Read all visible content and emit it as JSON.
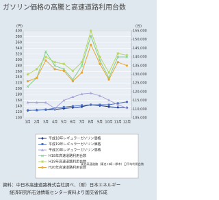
{
  "chart_data": {
    "type": "line",
    "title": "ガソリン価格の高騰と高速道路利用台数",
    "y_label": "(円)",
    "y2_label": "(台)",
    "categories": [
      "1月",
      "2月",
      "3月",
      "4月",
      "5月",
      "6月",
      "7月",
      "8月",
      "9月",
      "10月",
      "11月",
      "12月"
    ],
    "ylim": [
      100,
      400
    ],
    "yticks": [
      100,
      120,
      140,
      160,
      180,
      200,
      220,
      240,
      260,
      280,
      300,
      320,
      340,
      360,
      380,
      400
    ],
    "y2lim": [
      105000,
      155000
    ],
    "y2ticks": [
      {
        "value": 105000,
        "label": "105,000"
      },
      {
        "value": 110000,
        "label": "110,000"
      },
      {
        "value": 115000,
        "label": "115,000"
      },
      {
        "value": 120000,
        "label": "120,000"
      },
      {
        "value": 125000,
        "label": "125,000"
      },
      {
        "value": 130000,
        "label": "130,000"
      },
      {
        "value": 135000,
        "label": "135,000"
      },
      {
        "value": 140000,
        "label": "140,000"
      },
      {
        "value": 145000,
        "label": "145,000"
      },
      {
        "value": 150000,
        "label": "150,000"
      },
      {
        "value": 155000,
        "label": "155,000"
      }
    ],
    "grid": true,
    "series": [
      {
        "name": "平成18年レギュラーガソリン価格",
        "color": "#1f3a8a",
        "marker": "diamond",
        "values": [
          125,
          127,
          128,
          129,
          132,
          135,
          138,
          145,
          142,
          138,
          136,
          135
        ]
      },
      {
        "name": "平成19年レギュラーガソリン価格",
        "color": "#4a6fc4",
        "marker": "square",
        "values": [
          126,
          126,
          128,
          133,
          137,
          140,
          143,
          145,
          145,
          145,
          150,
          155
        ]
      },
      {
        "name": "平成20年レギュラーガソリン価格",
        "color": "#a9a3d6",
        "marker": "triangle",
        "values": [
          153,
          153,
          153,
          132,
          160,
          172,
          182,
          185,
          176,
          161,
          145,
          134
        ]
      },
      {
        "name": "H18年高速道路利用台数",
        "color": "#7fcf8f",
        "marker": "cross",
        "axis": "y2",
        "values": [
          123000,
          128000,
          143000,
          135000,
          133000,
          127000,
          135000,
          152000,
          138000,
          128000,
          140000,
          140000
        ]
      },
      {
        "name": "H19年高速道路利用台数",
        "color": "#b9d65a",
        "marker": "star",
        "axis": "y2",
        "values": [
          130000,
          133000,
          140000,
          137000,
          136000,
          132000,
          137000,
          155000,
          140000,
          131000,
          142000,
          141000
        ]
      },
      {
        "name": "H20年高速道路利用台数",
        "color": "#e8a530",
        "marker": "circle",
        "axis": "y2",
        "values": [
          126000,
          128000,
          138000,
          133000,
          132000,
          126000,
          131000,
          147000,
          136000,
          127000,
          137000,
          135000
        ]
      }
    ],
    "annotation": "東名高速道路（東名川崎～厚木）日平均利用台数",
    "source": [
      "資料：中日本高速道路株式会社調べ、（財）日本エネルギー",
      "経済研究所石油情報センター資料より国交省作成"
    ]
  }
}
